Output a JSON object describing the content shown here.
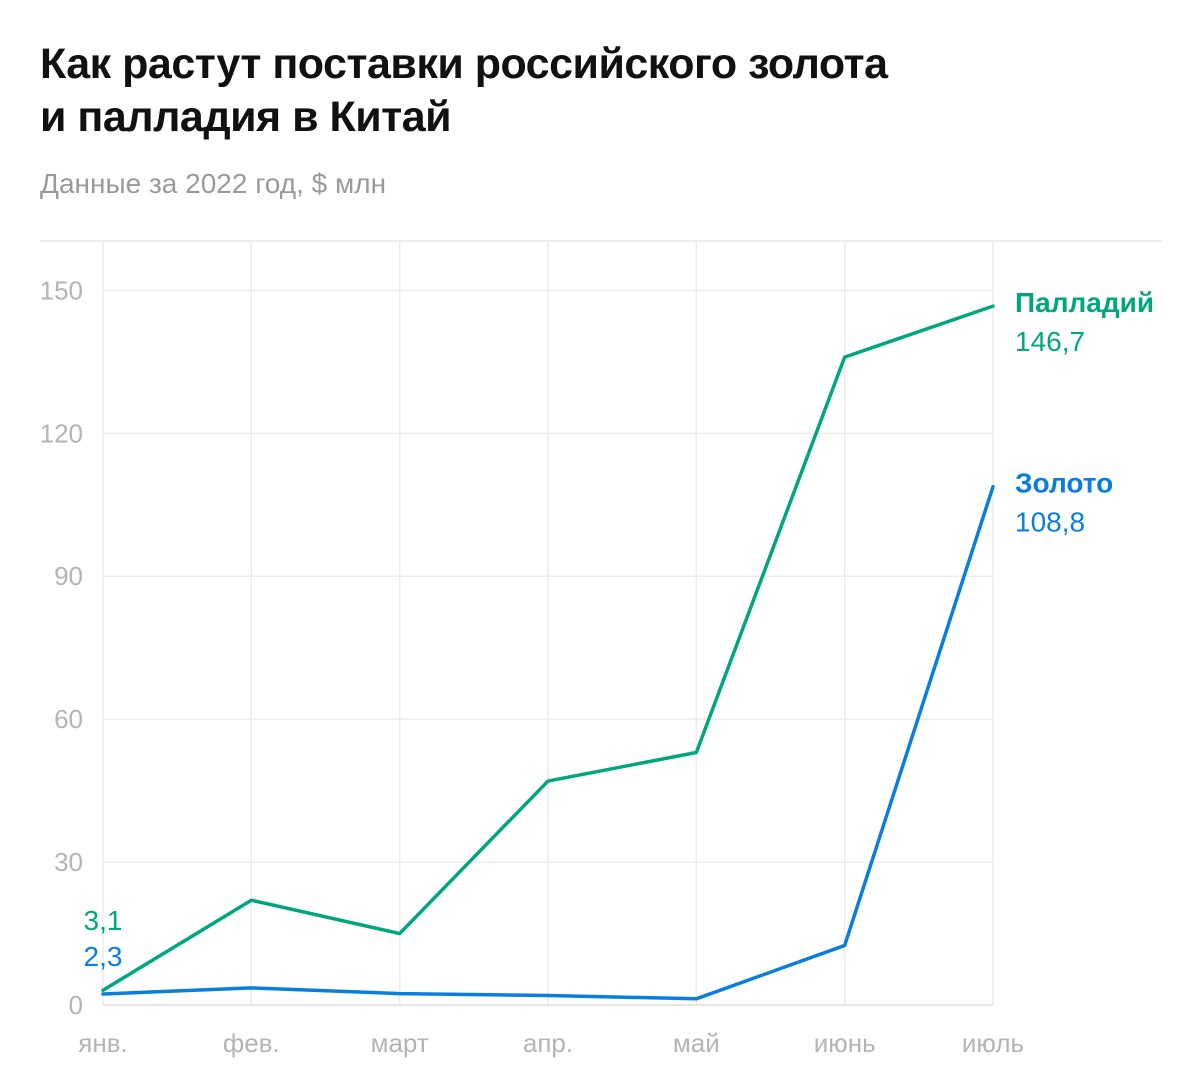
{
  "header": {
    "title_line1": "Как растут поставки российского золота",
    "title_line2": "и палладия в Китай",
    "subtitle": "Данные за 2022 год, $ млн"
  },
  "chart_data": {
    "type": "line",
    "title": "Как растут поставки российского золота и палладия в Китай",
    "subtitle": "Данные за 2022 год, $ млн",
    "xlabel": "",
    "ylabel": "",
    "categories": [
      "янв.",
      "фев.",
      "март",
      "апр.",
      "май",
      "июнь",
      "июль"
    ],
    "yticks": [
      0,
      30,
      60,
      90,
      120,
      150
    ],
    "ylim": [
      0,
      160
    ],
    "grid": true,
    "series": [
      {
        "name": "Палладий",
        "color": "#00a77e",
        "values": [
          3.1,
          22,
          15,
          47,
          53,
          136,
          146.7
        ],
        "start_label": "3,1",
        "end_label": "146,7"
      },
      {
        "name": "Золото",
        "color": "#0a7ee0",
        "values": [
          2.3,
          3.6,
          2.4,
          2.0,
          1.3,
          12.5,
          108.8
        ],
        "start_label": "2,3",
        "end_label": "108,8"
      }
    ]
  }
}
